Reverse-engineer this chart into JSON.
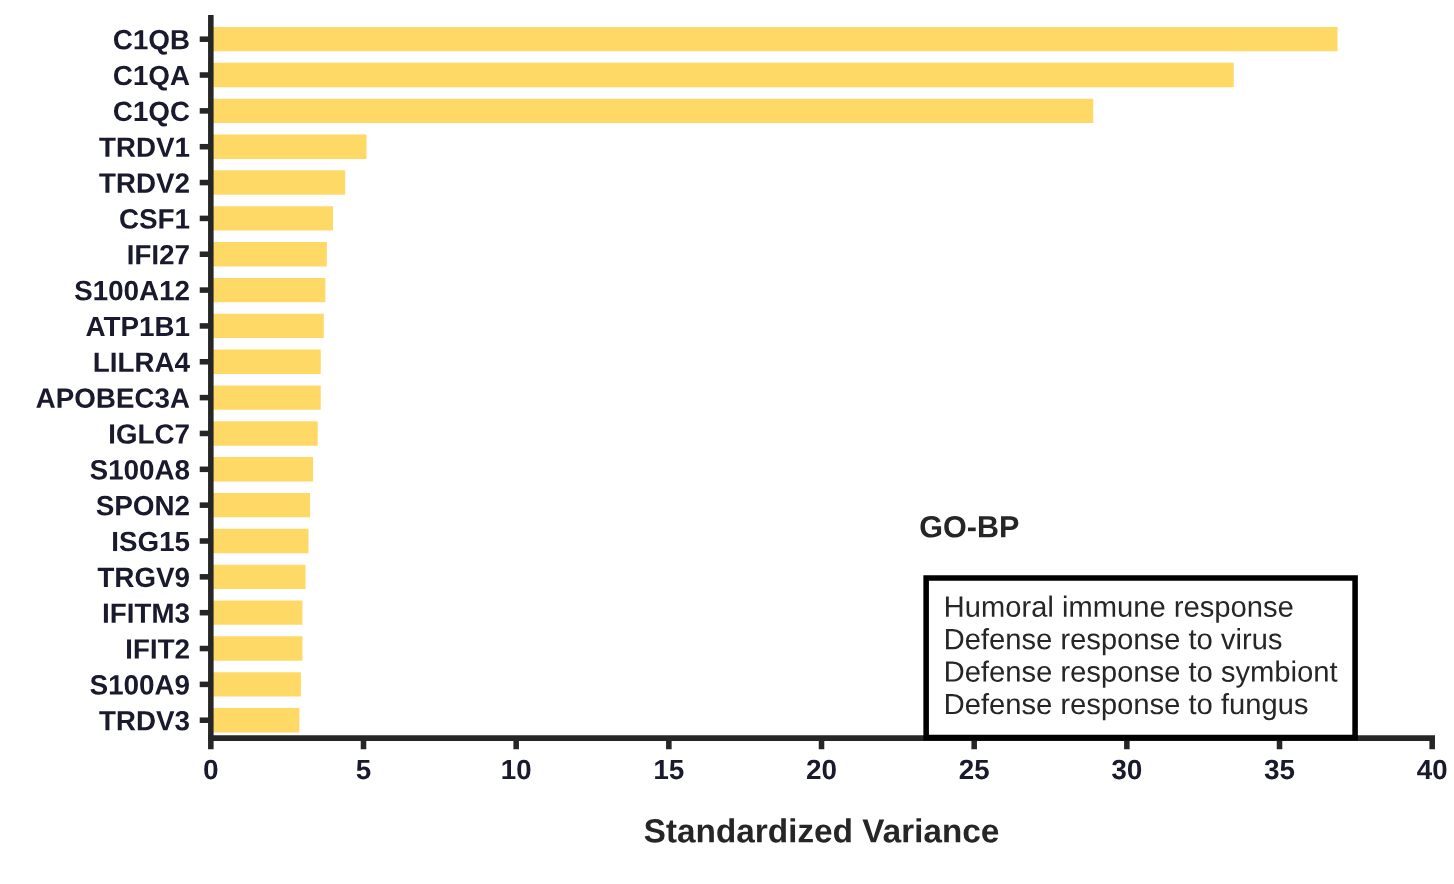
{
  "chart_data": {
    "type": "bar",
    "orientation": "horizontal",
    "xlabel": "Standardized Variance",
    "categories": [
      "C1QB",
      "C1QA",
      "C1QC",
      "TRDV1",
      "TRDV2",
      "CSF1",
      "IFI27",
      "S100A12",
      "ATP1B1",
      "LILRA4",
      "APOBEC3A",
      "IGLC7",
      "S100A8",
      "SPON2",
      "ISG15",
      "TRGV9",
      "IFITM3",
      "IFIT2",
      "S100A9",
      "TRDV3"
    ],
    "values": [
      36.9,
      33.5,
      28.9,
      5.1,
      4.4,
      4.0,
      3.8,
      3.75,
      3.7,
      3.6,
      3.6,
      3.5,
      3.35,
      3.25,
      3.2,
      3.1,
      3.0,
      3.0,
      2.95,
      2.9
    ],
    "color": "#ffd966",
    "xlim": [
      0,
      40
    ],
    "xticks": [
      0,
      5,
      10,
      15,
      20,
      25,
      30,
      35,
      40
    ],
    "grid": false,
    "legend": false,
    "annotations": [
      "GO-BP",
      "Humoral immune response",
      "Defense response to virus",
      "Defense response to symbiont",
      "Defense response to fungus"
    ]
  }
}
